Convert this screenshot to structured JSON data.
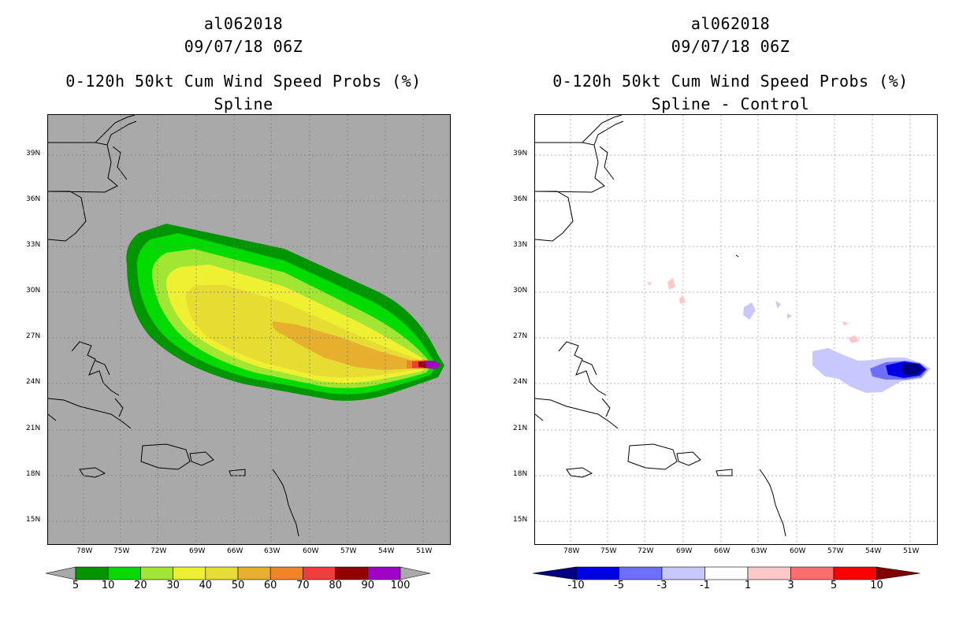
{
  "left": {
    "storm_id": "al062018",
    "datetime": "09/07/18 06Z",
    "product": "0-120h 50kt Cum Wind Speed Probs (%)",
    "subtitle": "Spline",
    "background_color": "#a9a9a9",
    "colorbar": {
      "labels": [
        "5",
        "10",
        "20",
        "30",
        "40",
        "50",
        "60",
        "70",
        "80",
        "90",
        "100"
      ],
      "colors": [
        "#009600",
        "#00dc00",
        "#a0e632",
        "#f0f032",
        "#e6dc32",
        "#e6af2d",
        "#f08228",
        "#f03c3c",
        "#960000",
        "#a000c8"
      ],
      "end_colors": [
        "#a9a9a9",
        "#a9a9a9"
      ]
    }
  },
  "right": {
    "storm_id": "al062018",
    "datetime": "09/07/18 06Z",
    "product": "0-120h 50kt Cum Wind Speed Probs (%)",
    "subtitle": "Spline - Control",
    "background_color": "#ffffff",
    "colorbar": {
      "labels": [
        "-10",
        "-5",
        "-3",
        "-1",
        "1",
        "3",
        "5",
        "10"
      ],
      "colors": [
        "#0000e6",
        "#6e6eff",
        "#c8c8ff",
        "#ffffff",
        "#ffc8c8",
        "#ff6e6e",
        "#ff0000"
      ],
      "end_colors": [
        "#000080",
        "#800000"
      ]
    }
  },
  "lon_labels": [
    "78W",
    "75W",
    "72W",
    "69W",
    "66W",
    "63W",
    "60W",
    "57W",
    "54W",
    "51W"
  ],
  "lat_labels": [
    "39N",
    "36N",
    "33N",
    "30N",
    "27N",
    "24N",
    "21N",
    "18N",
    "15N"
  ]
}
